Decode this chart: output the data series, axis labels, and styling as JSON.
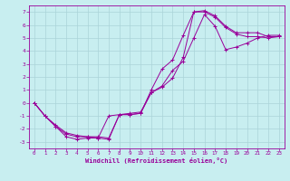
{
  "xlabel": "Windchill (Refroidissement éolien,°C)",
  "bg_color": "#c8eef0",
  "grid_color": "#aad4d8",
  "line_color": "#990099",
  "xlim": [
    -0.5,
    23.5
  ],
  "ylim": [
    -3.5,
    7.5
  ],
  "xticks": [
    0,
    1,
    2,
    3,
    4,
    5,
    6,
    7,
    8,
    9,
    10,
    11,
    12,
    13,
    14,
    15,
    16,
    17,
    18,
    19,
    20,
    21,
    22,
    23
  ],
  "yticks": [
    -3,
    -2,
    -1,
    0,
    1,
    2,
    3,
    4,
    5,
    6,
    7
  ],
  "line1_x": [
    0,
    1,
    2,
    3,
    4,
    5,
    6,
    7,
    8,
    9,
    10,
    11,
    12,
    13,
    14,
    15,
    16,
    17,
    18,
    19,
    20,
    21,
    22,
    23
  ],
  "line1_y": [
    0,
    -1,
    -1.8,
    -2.6,
    -2.8,
    -2.7,
    -2.7,
    -2.8,
    -0.9,
    -0.9,
    -0.8,
    1.0,
    2.6,
    3.3,
    5.2,
    7.0,
    7.1,
    6.7,
    5.9,
    5.4,
    5.4,
    5.4,
    5.1,
    5.1
  ],
  "line2_x": [
    0,
    1,
    2,
    3,
    4,
    5,
    6,
    7,
    8,
    9,
    10,
    11,
    12,
    13,
    14,
    15,
    16,
    17,
    18,
    19,
    20,
    21,
    22,
    23
  ],
  "line2_y": [
    0,
    -1,
    -1.8,
    -2.4,
    -2.6,
    -2.6,
    -2.7,
    -1.0,
    -0.9,
    -0.9,
    -0.8,
    0.8,
    1.2,
    1.9,
    3.5,
    7.0,
    7.0,
    6.6,
    5.8,
    5.3,
    5.1,
    5.1,
    5.0,
    5.1
  ],
  "line3_x": [
    0,
    1,
    2,
    3,
    4,
    5,
    6,
    7,
    8,
    9,
    10,
    11,
    12,
    13,
    14,
    15,
    16,
    17,
    18,
    19,
    20,
    21,
    22,
    23
  ],
  "line3_y": [
    0,
    -1,
    -1.7,
    -2.3,
    -2.5,
    -2.6,
    -2.6,
    -2.7,
    -0.9,
    -0.8,
    -0.7,
    0.8,
    1.3,
    2.5,
    3.2,
    5.0,
    6.8,
    5.9,
    4.1,
    4.3,
    4.6,
    5.0,
    5.2,
    5.2
  ]
}
